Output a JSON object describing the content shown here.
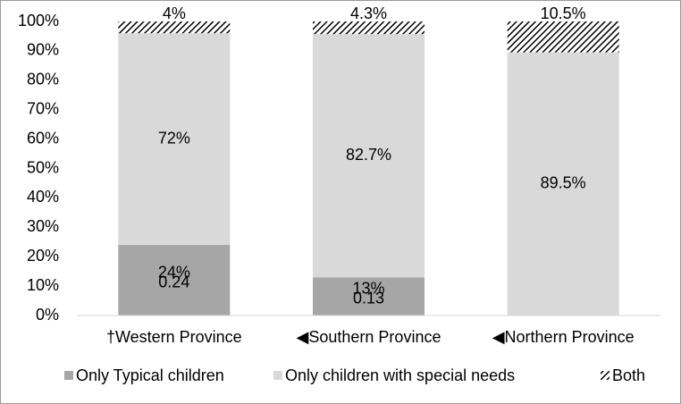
{
  "chart_data": {
    "type": "stacked_bar",
    "categories": [
      "†Western Province",
      "◀Southern Province",
      "◀Northern Province"
    ],
    "series": [
      {
        "name": "Only Typical children",
        "color": "#a6a6a6",
        "values": [
          24,
          13,
          0
        ],
        "value_labels": [
          "24%",
          "13%",
          null
        ]
      },
      {
        "name": "Only children with special needs",
        "color": "#d9d9d9",
        "values": [
          72,
          82.7,
          89.5
        ],
        "value_labels": [
          "72%",
          "82.7%",
          "89.5%"
        ]
      },
      {
        "name": "Both",
        "color": "#000000",
        "pattern": "hatch",
        "values": [
          4,
          4.3,
          10.5
        ],
        "value_labels": [
          "4%",
          "4.3%",
          "10.5%"
        ]
      }
    ],
    "annotations": [
      "0.24",
      "0.13"
    ],
    "ylim": [
      0,
      100
    ],
    "yticks": [
      {
        "value": 0,
        "label": "0%"
      },
      {
        "value": 10,
        "label": "10%"
      },
      {
        "value": 20,
        "label": "20%"
      },
      {
        "value": 30,
        "label": "30%"
      },
      {
        "value": 40,
        "label": "40%"
      },
      {
        "value": 50,
        "label": "50%"
      },
      {
        "value": 60,
        "label": "60%"
      },
      {
        "value": 70,
        "label": "70%"
      },
      {
        "value": 80,
        "label": "80%"
      },
      {
        "value": 90,
        "label": "90%"
      },
      {
        "value": 100,
        "label": "100%"
      }
    ],
    "grid": false,
    "legend": "bottom"
  }
}
